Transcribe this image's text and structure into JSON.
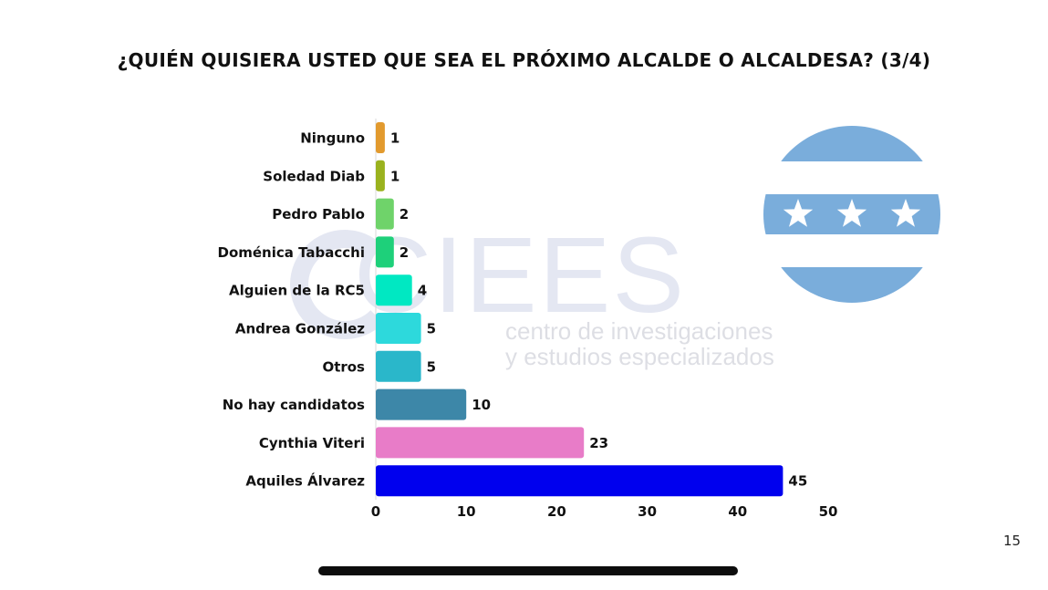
{
  "slide": {
    "title": "¿QUIÉN QUISIERA USTED QUE SEA EL PRÓXIMO ALCALDE O ALCALDESA? (3/4)",
    "page_number": "15"
  },
  "watermark": {
    "name": "CIEES",
    "line1": "centro de investigaciones",
    "line2": "y estudios especializados"
  },
  "flag": {
    "icon": "guayaquil-flag-icon",
    "band_color": "#7aaddb",
    "star_color": "#ffffff"
  },
  "chart_data": {
    "type": "bar",
    "orientation": "horizontal",
    "title": "¿QUIÉN QUISIERA USTED QUE SEA EL PRÓXIMO ALCALDE O ALCALDESA? (3/4)",
    "xlabel": "",
    "ylabel": "",
    "xlim": [
      0,
      50
    ],
    "xticks": [
      0,
      10,
      20,
      30,
      40,
      50
    ],
    "grid": false,
    "legend": "none",
    "categories": [
      "Ninguno",
      "Soledad Diab",
      "Pedro Pablo",
      "Doménica Tabacchi",
      "Alguien de la RC5",
      "Andrea González",
      "Otros",
      "No hay candidatos",
      "Cynthia Viteri",
      "Aquiles Álvarez"
    ],
    "values": [
      1,
      1,
      2,
      2,
      4,
      5,
      5,
      10,
      23,
      45
    ],
    "colors": [
      "#e29a2e",
      "#9ab21e",
      "#6fd36a",
      "#1ed07a",
      "#00e8c2",
      "#2dd9dc",
      "#2ab7ca",
      "#3d87a8",
      "#e87cc8",
      "#0000ee"
    ]
  }
}
